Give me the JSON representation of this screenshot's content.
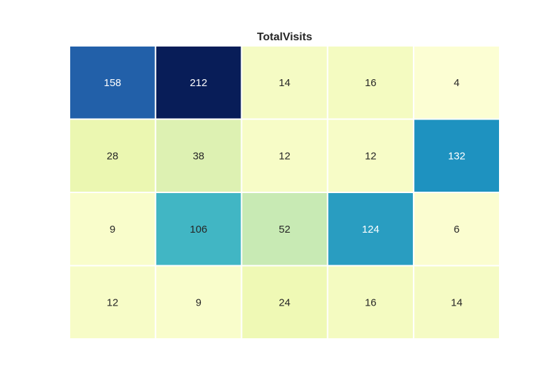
{
  "chart_data": {
    "type": "heatmap",
    "title": "TotalVisits",
    "colormap": "YlGnBu",
    "value_range": [
      0,
      212
    ],
    "show_axes": false,
    "cell_border_color": "#ffffff",
    "values": [
      [
        158,
        212,
        14,
        16,
        4
      ],
      [
        28,
        38,
        12,
        12,
        132
      ],
      [
        9,
        106,
        52,
        124,
        6
      ],
      [
        12,
        9,
        24,
        16,
        14
      ]
    ]
  }
}
